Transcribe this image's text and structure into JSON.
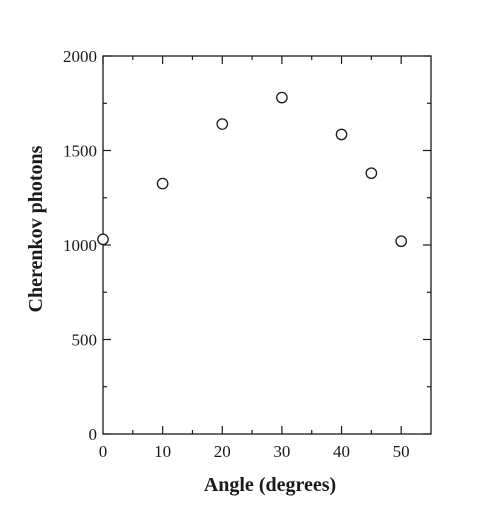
{
  "chart_data": {
    "type": "scatter",
    "title": "",
    "xlabel": "Angle (degrees)",
    "ylabel": "Cherenkov photons",
    "xlim": [
      0,
      55
    ],
    "ylim": [
      0,
      2000
    ],
    "x_ticks": [
      0,
      10,
      20,
      30,
      40,
      50
    ],
    "x_tick_labels": [
      "0",
      "10",
      "20",
      "30",
      "40",
      "50"
    ],
    "x_minor_ticks": [
      5,
      15,
      25,
      35,
      45
    ],
    "y_ticks": [
      0,
      500,
      1000,
      1500,
      2000
    ],
    "y_tick_labels": [
      "0",
      "500",
      "1000",
      "1500",
      "2000"
    ],
    "y_minor_ticks": [
      250,
      750,
      1250,
      1750
    ],
    "grid": false,
    "marker": "open-circle",
    "series": [
      {
        "x": [
          0,
          10,
          20,
          30,
          40,
          45,
          50
        ],
        "y": [
          1030,
          1325,
          1640,
          1780,
          1585,
          1380,
          1020
        ]
      }
    ]
  }
}
